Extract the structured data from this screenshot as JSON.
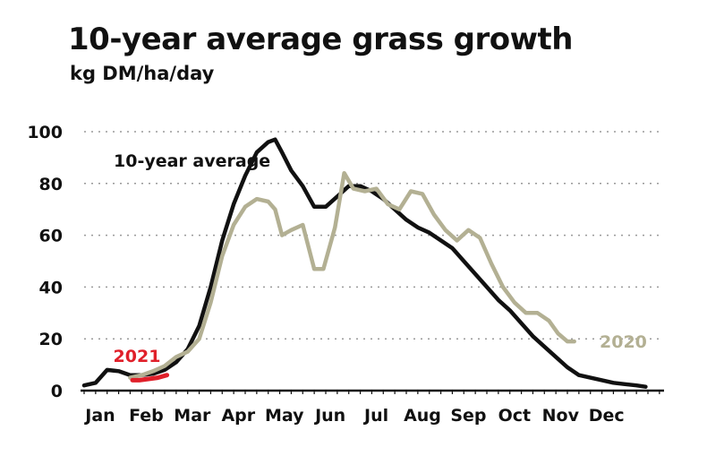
{
  "colors": {
    "avg": "#111111",
    "y2020": "#b3b093",
    "y2021": "#e0202a",
    "grid": "#9a9a9a"
  },
  "chart_data": {
    "type": "line",
    "title": "10-year average grass growth",
    "subtitle": "kg DM/ha/day",
    "xlabel": "",
    "ylabel": "",
    "ylim": [
      0,
      100
    ],
    "yticks": [
      0,
      20,
      40,
      60,
      80,
      100
    ],
    "xlim": [
      0,
      12.6
    ],
    "months": [
      "Jan",
      "Feb",
      "Mar",
      "Apr",
      "May",
      "Jun",
      "Jul",
      "Aug",
      "Sep",
      "Oct",
      "Nov",
      "Dec"
    ],
    "grid": "y-dotted",
    "series": [
      {
        "name": "10-year average",
        "color_key": "avg",
        "points": [
          [
            0.0,
            2
          ],
          [
            0.25,
            3
          ],
          [
            0.5,
            8
          ],
          [
            0.75,
            7.5
          ],
          [
            1.0,
            6
          ],
          [
            1.25,
            6
          ],
          [
            1.5,
            6.5
          ],
          [
            1.75,
            8
          ],
          [
            2.0,
            11
          ],
          [
            2.25,
            16
          ],
          [
            2.5,
            25
          ],
          [
            2.75,
            40
          ],
          [
            3.0,
            58
          ],
          [
            3.25,
            72
          ],
          [
            3.5,
            83
          ],
          [
            3.75,
            92
          ],
          [
            4.0,
            96
          ],
          [
            4.15,
            97
          ],
          [
            4.3,
            92
          ],
          [
            4.5,
            85
          ],
          [
            4.75,
            79
          ],
          [
            5.0,
            71
          ],
          [
            5.25,
            71
          ],
          [
            5.5,
            75
          ],
          [
            5.75,
            79
          ],
          [
            6.0,
            79
          ],
          [
            6.25,
            77
          ],
          [
            6.5,
            74
          ],
          [
            6.75,
            70
          ],
          [
            7.0,
            66
          ],
          [
            7.25,
            63
          ],
          [
            7.5,
            61
          ],
          [
            7.75,
            58
          ],
          [
            8.0,
            55
          ],
          [
            8.25,
            50
          ],
          [
            8.5,
            45
          ],
          [
            8.75,
            40
          ],
          [
            9.0,
            35
          ],
          [
            9.25,
            31
          ],
          [
            9.5,
            26
          ],
          [
            9.75,
            21
          ],
          [
            10.0,
            17
          ],
          [
            10.25,
            13
          ],
          [
            10.5,
            9
          ],
          [
            10.75,
            6
          ],
          [
            11.0,
            5
          ],
          [
            11.25,
            4
          ],
          [
            11.5,
            3
          ],
          [
            11.75,
            2.5
          ],
          [
            12.0,
            2
          ],
          [
            12.2,
            1.5
          ]
        ]
      },
      {
        "name": "2020",
        "color_key": "y2020",
        "points": [
          [
            1.0,
            5
          ],
          [
            1.25,
            6
          ],
          [
            1.5,
            7.5
          ],
          [
            1.75,
            9.5
          ],
          [
            2.0,
            13
          ],
          [
            2.25,
            15
          ],
          [
            2.5,
            20
          ],
          [
            2.75,
            34
          ],
          [
            3.0,
            52
          ],
          [
            3.25,
            64
          ],
          [
            3.5,
            71
          ],
          [
            3.75,
            74
          ],
          [
            4.0,
            73
          ],
          [
            4.15,
            70
          ],
          [
            4.3,
            60
          ],
          [
            4.5,
            62
          ],
          [
            4.75,
            64
          ],
          [
            5.0,
            47
          ],
          [
            5.2,
            47
          ],
          [
            5.45,
            63
          ],
          [
            5.65,
            84
          ],
          [
            5.85,
            78
          ],
          [
            6.1,
            77
          ],
          [
            6.35,
            78
          ],
          [
            6.6,
            72
          ],
          [
            6.85,
            70
          ],
          [
            7.1,
            77
          ],
          [
            7.35,
            76
          ],
          [
            7.6,
            68
          ],
          [
            7.85,
            62
          ],
          [
            8.1,
            58
          ],
          [
            8.35,
            62
          ],
          [
            8.6,
            59
          ],
          [
            8.85,
            49
          ],
          [
            9.1,
            40
          ],
          [
            9.35,
            34
          ],
          [
            9.6,
            30
          ],
          [
            9.85,
            30
          ],
          [
            10.1,
            27
          ],
          [
            10.3,
            22
          ],
          [
            10.5,
            19
          ],
          [
            10.65,
            19
          ]
        ]
      },
      {
        "name": "2021",
        "color_key": "y2021",
        "points": [
          [
            1.05,
            4
          ],
          [
            1.2,
            4
          ],
          [
            1.4,
            4.5
          ],
          [
            1.6,
            5
          ],
          [
            1.8,
            6
          ]
        ]
      }
    ]
  }
}
